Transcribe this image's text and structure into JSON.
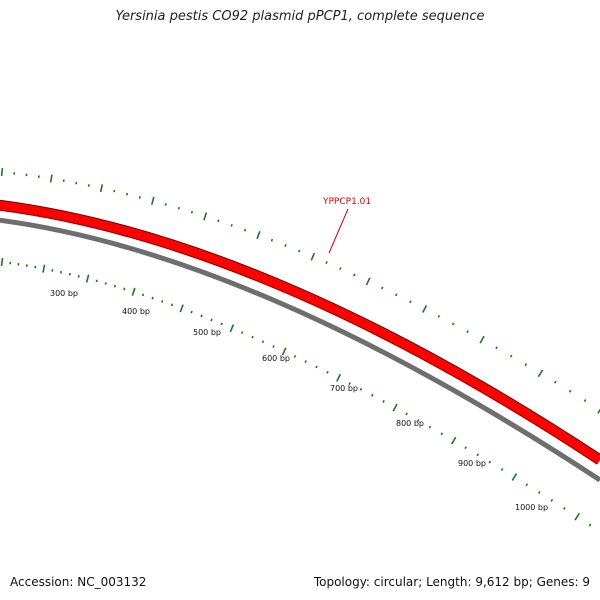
{
  "title": "Yersinia pestis CO92 plasmid pPCP1, complete sequence",
  "footer": {
    "accession": "Accession: NC_003132",
    "summary": "Topology: circular; Length: 9,612 bp; Genes: 9"
  },
  "gene": {
    "label": "YPPCP1.01",
    "color": "#ff0000"
  },
  "ruler": {
    "labels": [
      "300 bp",
      "400 bp",
      "500 bp",
      "600 bp",
      "700 bp",
      "800 bp",
      "900 bp",
      "1000 bp"
    ],
    "tick_color": "#1a7a1a"
  },
  "backbone_color": "#7a7a7a"
}
